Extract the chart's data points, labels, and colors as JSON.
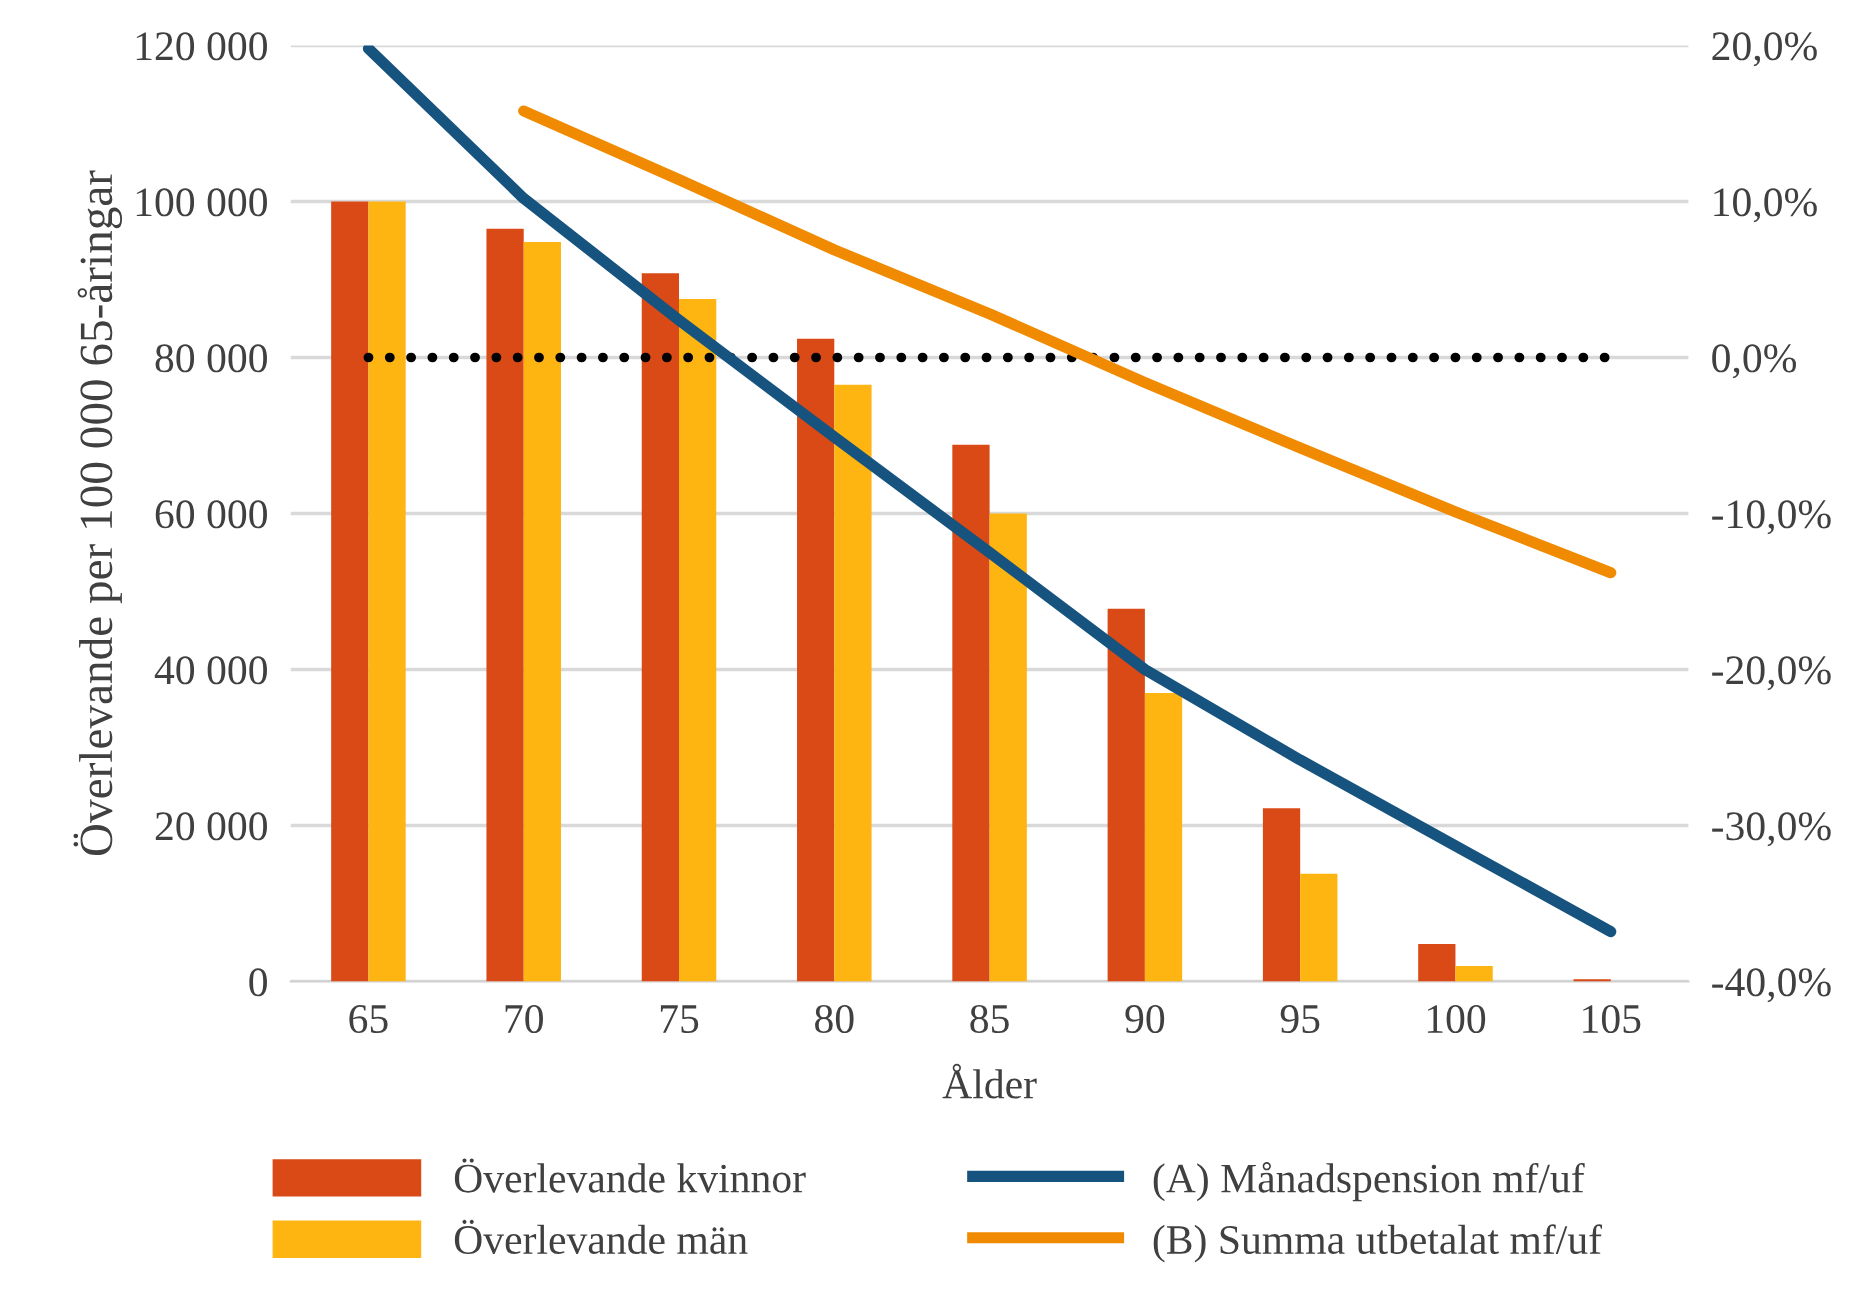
{
  "chart_data": {
    "type": "bar",
    "xlabel": "Ålder",
    "ylabel": "Överlevande per 100 000 65-åringar",
    "categories": [
      "65",
      "70",
      "75",
      "80",
      "85",
      "90",
      "95",
      "100",
      "105"
    ],
    "series": [
      {
        "name": "Överlevande kvinnor",
        "color": "#d94a16",
        "values": [
          100000,
          96500,
          90800,
          82400,
          68800,
          47800,
          22200,
          4800,
          300
        ]
      },
      {
        "name": "Överlevande män",
        "color": "#ffb511",
        "values": [
          100000,
          94800,
          87500,
          76500,
          60000,
          37000,
          13800,
          2000,
          0
        ]
      },
      {
        "type": "line",
        "axis": "y2",
        "line_style": "dotted",
        "color": "#000000",
        "values": [
          0,
          0,
          0,
          0,
          0,
          0,
          0,
          0,
          0
        ]
      },
      {
        "name": "(A) Månadspension mf/uf",
        "type": "line",
        "axis": "y2",
        "line_style": "solid",
        "color": "#16537e",
        "values": [
          19.8,
          10.2,
          2.4,
          -5.1,
          -12.5,
          -20.0,
          -25.8,
          -31.3,
          -36.8
        ]
      },
      {
        "name": "(B) Summa utbetalat mf/uf",
        "type": "line",
        "axis": "y2",
        "line_style": "solid",
        "color": "#f08a00",
        "values": [
          null,
          15.8,
          11.4,
          6.9,
          2.8,
          -1.6,
          -5.8,
          -9.9,
          -13.8
        ]
      }
    ],
    "ylim": [
      0,
      120000
    ],
    "yticks": [
      {
        "value": 0,
        "label": "0"
      },
      {
        "value": 20000,
        "label": "20 000"
      },
      {
        "value": 40000,
        "label": "40 000"
      },
      {
        "value": 60000,
        "label": "60 000"
      },
      {
        "value": 80000,
        "label": "80 000"
      },
      {
        "value": 100000,
        "label": "100 000"
      },
      {
        "value": 120000,
        "label": "120 000"
      }
    ],
    "y2lim": [
      -40,
      20
    ],
    "y2ticks": [
      {
        "value": -40,
        "label": "-40,0%"
      },
      {
        "value": -30,
        "label": "-30,0%"
      },
      {
        "value": -20,
        "label": "-20,0%"
      },
      {
        "value": -10,
        "label": "-10,0%"
      },
      {
        "value": 0,
        "label": "0,0%"
      },
      {
        "value": 10,
        "label": "10,0%"
      },
      {
        "value": 20,
        "label": "20,0%"
      }
    ],
    "grid": "y",
    "legend": "bottom",
    "marker": "none"
  }
}
